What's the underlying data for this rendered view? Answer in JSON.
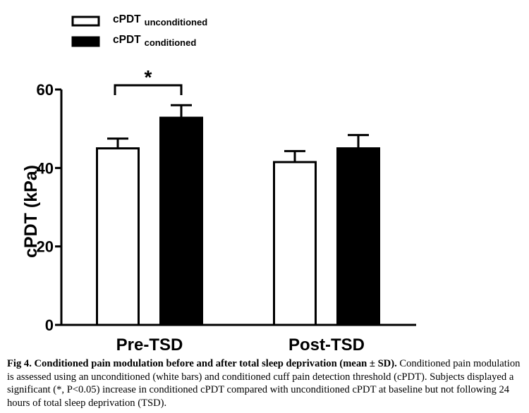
{
  "chart_data": {
    "type": "bar",
    "categories": [
      "Pre-TSD",
      "Post-TSD"
    ],
    "series": [
      {
        "name": "cPDT unconditioned",
        "name_main": "cPDT",
        "name_sub": "unconditioned",
        "fill": "#ffffff",
        "values": [
          45,
          41.5
        ],
        "sd": [
          2.5,
          2.8
        ]
      },
      {
        "name": "cPDT conditioned",
        "name_main": "cPDT",
        "name_sub": "conditioned",
        "fill": "#000000",
        "values": [
          52.8,
          45
        ],
        "sd": [
          3.2,
          3.4
        ]
      }
    ],
    "ylabel": "cPDT  (kPa)",
    "xlabel": "",
    "ylim": [
      0,
      60
    ],
    "yticks": [
      0,
      20,
      40,
      60
    ],
    "significance": {
      "label": "*",
      "category": "Pre-TSD",
      "between": [
        "cPDT unconditioned",
        "cPDT conditioned"
      ]
    }
  },
  "caption": {
    "title": "Fig 4. Conditioned pain modulation before and after total sleep deprivation (mean ± SD).",
    "body": " Conditioned pain modulation is assessed using an unconditioned (white bars) and conditioned cuff pain detection threshold (cPDT). Subjects displayed a significant (*, P<0.05) increase in conditioned cPDT compared with unconditioned cPDT at baseline but not following 24 hours of total sleep deprivation (TSD)."
  }
}
